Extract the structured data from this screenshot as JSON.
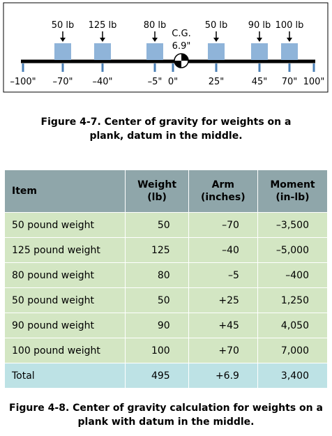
{
  "diagram": {
    "weight_labels": [
      "50 lb",
      "125 lb",
      "80 lb",
      "50 lb",
      "90 lb",
      "100 lb"
    ],
    "cg_label": "C.G.",
    "cg_value": "6.9\"",
    "axis_labels": [
      "–100\"",
      "–70\"",
      "–40\"",
      "–5\"",
      "0\"",
      "25\"",
      "45\"",
      "70\"",
      "100\""
    ]
  },
  "caption_1": [
    "Figure 4-7. Center of gravity for weights on a",
    "plank, datum in the middle."
  ],
  "table": {
    "headers": [
      [
        "Item"
      ],
      [
        "Weight",
        "(lb)"
      ],
      [
        "Arm",
        "(inches)"
      ],
      [
        "Moment",
        "(in-lb)"
      ]
    ],
    "rows": [
      [
        "50 pound weight",
        "50",
        "–70",
        "–3,500"
      ],
      [
        "125 pound weight",
        "125",
        "–40",
        "–5,000"
      ],
      [
        "80 pound weight",
        "80",
        "–5",
        "–400"
      ],
      [
        "50 pound weight",
        "50",
        "+25",
        "1,250"
      ],
      [
        "90 pound weight",
        "90",
        "+45",
        "4,050"
      ],
      [
        "100 pound weight",
        "100",
        "+70",
        "7,000"
      ]
    ],
    "total": [
      "Total",
      "495",
      "+6.9",
      "3,400"
    ]
  },
  "caption_2": [
    "Figure 4-8. Center of gravity calculation for weights on a",
    "plank with datum in the middle."
  ]
}
